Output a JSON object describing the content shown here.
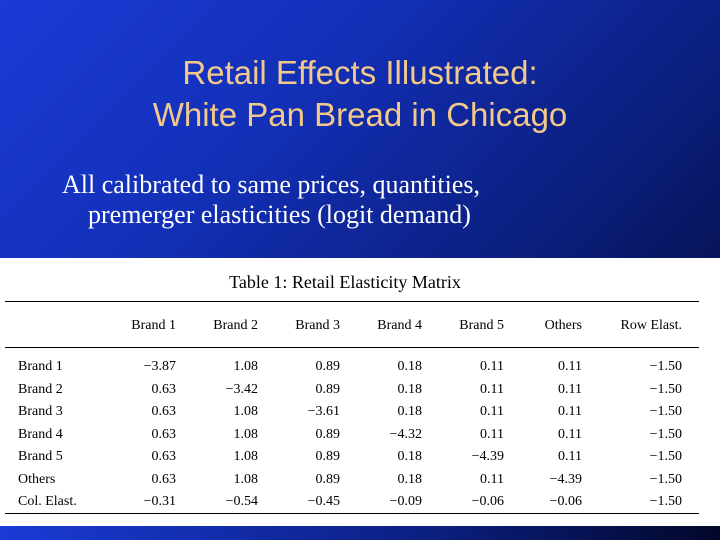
{
  "slide": {
    "title_line1": "Retail Effects Illustrated:",
    "title_line2": "White Pan Bread in Chicago",
    "subtitle_line1": "All calibrated to same prices, quantities,",
    "subtitle_line2": "premerger elasticities (logit demand)"
  },
  "table": {
    "caption": "Table 1: Retail Elasticity Matrix",
    "columns": [
      "",
      "Brand 1",
      "Brand 2",
      "Brand 3",
      "Brand 4",
      "Brand 5",
      "Others",
      "Row Elast."
    ],
    "rows": [
      {
        "label": "Brand 1",
        "cells": [
          "−3.87",
          "1.08",
          "0.89",
          "0.18",
          "0.11",
          "0.11",
          "−1.50"
        ]
      },
      {
        "label": "Brand 2",
        "cells": [
          "0.63",
          "−3.42",
          "0.89",
          "0.18",
          "0.11",
          "0.11",
          "−1.50"
        ]
      },
      {
        "label": "Brand 3",
        "cells": [
          "0.63",
          "1.08",
          "−3.61",
          "0.18",
          "0.11",
          "0.11",
          "−1.50"
        ]
      },
      {
        "label": "Brand 4",
        "cells": [
          "0.63",
          "1.08",
          "0.89",
          "−4.32",
          "0.11",
          "0.11",
          "−1.50"
        ]
      },
      {
        "label": "Brand 5",
        "cells": [
          "0.63",
          "1.08",
          "0.89",
          "0.18",
          "−4.39",
          "0.11",
          "−1.50"
        ]
      },
      {
        "label": "Others",
        "cells": [
          "0.63",
          "1.08",
          "0.89",
          "0.18",
          "0.11",
          "−4.39",
          "−1.50"
        ]
      },
      {
        "label": "Col. Elast.",
        "cells": [
          "−0.31",
          "−0.54",
          "−0.45",
          "−0.09",
          "−0.06",
          "−0.06",
          "−1.50"
        ]
      }
    ]
  }
}
